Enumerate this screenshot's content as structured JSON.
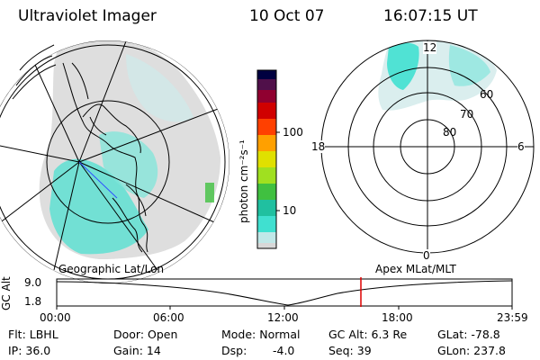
{
  "header": {
    "title": "Ultraviolet Imager",
    "date": "10 Oct 07",
    "time": "16:07:15 UT"
  },
  "geo_map": {
    "caption": "Geographic Lat/Lon"
  },
  "colorbar": {
    "label": "photon cm⁻²s⁻¹",
    "ticks": [
      "100",
      "10"
    ],
    "colors": [
      "#d8d8d8",
      "#c0e8e8",
      "#40e0d0",
      "#20c0a0",
      "#40c040",
      "#a0e020",
      "#e0e000",
      "#ffa000",
      "#ff4000",
      "#d00000",
      "#900030",
      "#50104a",
      "#000040"
    ]
  },
  "polar_plot": {
    "caption": "Apex MLat/MLT",
    "mlt_labels": {
      "top": "12",
      "left": "18",
      "right": "6",
      "bottom": "0"
    },
    "lat_labels": [
      "60",
      "70",
      "80"
    ]
  },
  "timeline": {
    "axis_label": "GC Alt",
    "y_ticks": [
      "9.0",
      "1.8"
    ],
    "x_ticks": [
      "00:00",
      "06:00",
      "12:00",
      "18:00",
      "23:59"
    ],
    "marker_color": "#dd0000"
  },
  "info": {
    "flt": "Flt: LBHL",
    "door": "Door: Open",
    "mode": "Mode: Normal",
    "gc_alt": "GC Alt: 6.3 Re",
    "glat": "GLat: -78.8",
    "ip": "IP: 36.0",
    "gain": "Gain: 14",
    "dsp_label": "Dsp:",
    "dsp_value": "-4.0",
    "seq": "Seq: 39",
    "glon": "GLon: 237.8"
  }
}
